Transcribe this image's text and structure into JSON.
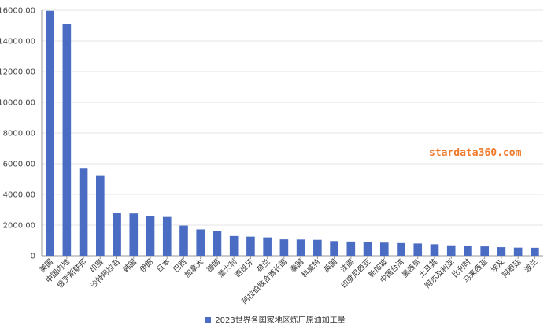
{
  "watermark": "stardata360.com",
  "colors": {
    "bar": "#4a6cc3",
    "grid": "#e4e4e4",
    "axis": "#999999",
    "watermark": "#f07a2a"
  },
  "chart_data": {
    "type": "bar",
    "title": "",
    "xlabel": "",
    "ylabel": "",
    "ylim": [
      0,
      16000
    ],
    "yticks": [
      "0",
      "2000.00",
      "4000.00",
      "6000.00",
      "8000.00",
      "10000.00",
      "12000.00",
      "14000.00",
      "16000.00"
    ],
    "grid": true,
    "legend_position": "bottom",
    "categories": [
      "美国",
      "中国内地",
      "俄罗斯联邦",
      "印度",
      "沙特阿拉伯",
      "韩国",
      "伊朗",
      "日本",
      "巴西",
      "加拿大",
      "德国",
      "意大利",
      "西班牙",
      "荷兰",
      "阿拉伯联合酋长国",
      "泰国",
      "科威特",
      "英国",
      "法国",
      "印度尼西亚",
      "新加坡",
      "中国台湾",
      "墨西哥",
      "土耳其",
      "阿尔及利亚",
      "比利时",
      "马来西亚",
      "埃及",
      "阿根廷",
      "波兰"
    ],
    "series": [
      {
        "name": "2023世界各国家地区炼厂原油加工量",
        "values": [
          15960,
          15090,
          5680,
          5250,
          2820,
          2760,
          2570,
          2530,
          1970,
          1720,
          1610,
          1290,
          1250,
          1200,
          1070,
          1060,
          1040,
          960,
          930,
          890,
          860,
          830,
          800,
          750,
          680,
          640,
          610,
          560,
          530,
          520
        ]
      }
    ]
  }
}
